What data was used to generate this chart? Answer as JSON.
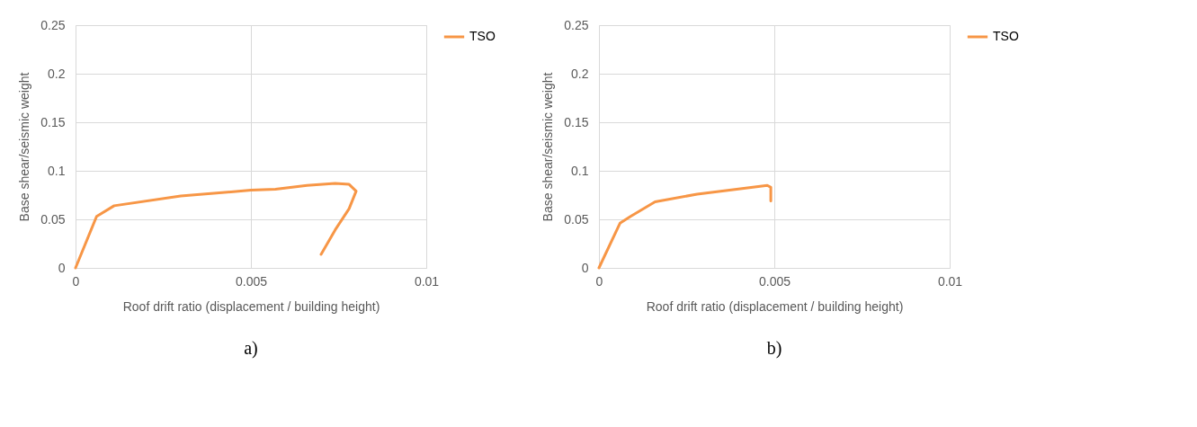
{
  "chart_data": [
    {
      "type": "line",
      "xlabel": "Roof drift ratio (displacement / building height)",
      "ylabel": "Base shear/seismic weight",
      "xlim": [
        0,
        0.01
      ],
      "xticks": [
        0,
        0.005,
        0.01
      ],
      "ylim": [
        0,
        0.25
      ],
      "yticks": [
        0,
        0.05,
        0.1,
        0.15,
        0.2,
        0.25
      ],
      "grid": true,
      "legend": "right",
      "marker": "none",
      "line_style": "solid",
      "annotations": [
        "a)"
      ],
      "series": [
        {
          "name": "TSO",
          "color": "#f79646",
          "x": [
            0,
            0.0006,
            0.0011,
            0.003,
            0.005,
            0.0057,
            0.0066,
            0.0074,
            0.0078,
            0.008,
            0.0078,
            0.0074,
            0.007
          ],
          "values": [
            0,
            0.053,
            0.064,
            0.074,
            0.08,
            0.081,
            0.085,
            0.087,
            0.086,
            0.079,
            0.061,
            0.039,
            0.014
          ]
        }
      ]
    },
    {
      "type": "line",
      "xlabel": "Roof drift ratio (displacement / building height)",
      "ylabel": "Base shear/seismic weight",
      "xlim": [
        0,
        0.01
      ],
      "xticks": [
        0,
        0.005,
        0.01
      ],
      "ylim": [
        0,
        0.25
      ],
      "yticks": [
        0,
        0.05,
        0.1,
        0.15,
        0.2,
        0.25
      ],
      "grid": true,
      "legend": "right",
      "marker": "none",
      "line_style": "solid",
      "annotations": [
        "b)"
      ],
      "series": [
        {
          "name": "TSO",
          "color": "#f79646",
          "x": [
            0,
            0.0006,
            0.0009,
            0.0016,
            0.0028,
            0.0048,
            0.0049,
            0.0049
          ],
          "values": [
            0,
            0.046,
            0.053,
            0.068,
            0.076,
            0.085,
            0.083,
            0.069
          ]
        }
      ]
    }
  ]
}
